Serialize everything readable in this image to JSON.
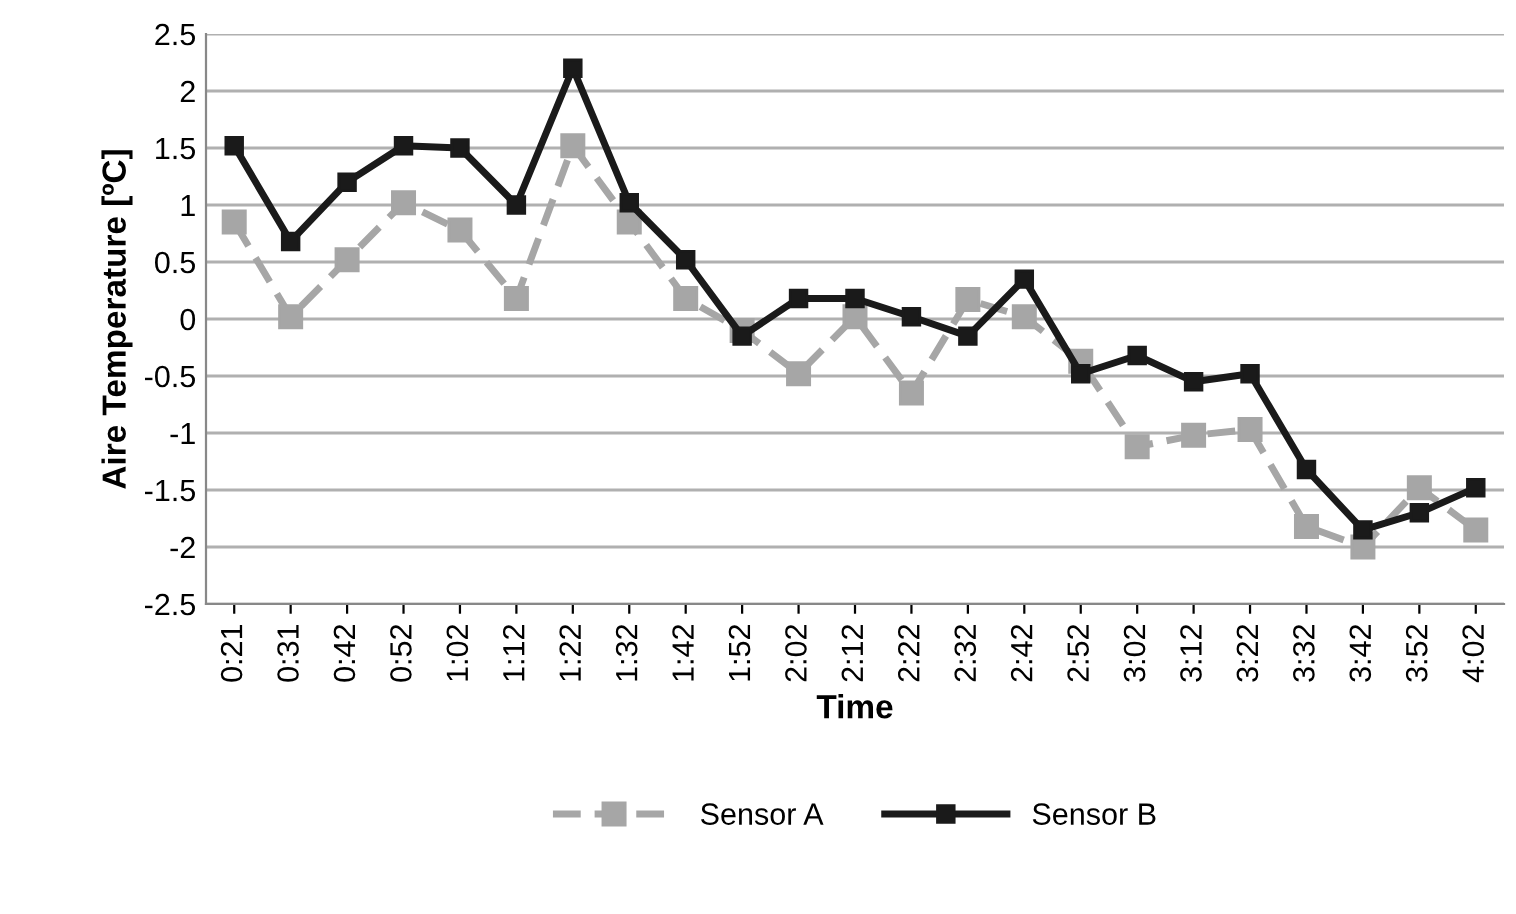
{
  "chart_data": {
    "type": "line",
    "xlabel": "Time",
    "ylabel": "Aire Temperature [ºC]",
    "categories": [
      "0:21",
      "0:31",
      "0:42",
      "0:52",
      "1:02",
      "1:12",
      "1:22",
      "1:32",
      "1:42",
      "1:52",
      "2:02",
      "2:12",
      "2:22",
      "2:32",
      "2:42",
      "2:52",
      "3:02",
      "3:12",
      "3:22",
      "3:32",
      "3:42",
      "3:52",
      "4:02"
    ],
    "series": [
      {
        "name": "Sensor A",
        "color": "#a6a6a6",
        "line_style": "dashed",
        "values": [
          0.85,
          0.02,
          0.52,
          1.02,
          0.78,
          0.18,
          1.52,
          0.85,
          0.18,
          -0.1,
          -0.48,
          0.02,
          -0.65,
          0.17,
          0.02,
          -0.37,
          -1.12,
          -1.02,
          -0.97,
          -1.82,
          -2.0,
          -1.48,
          -1.85
        ]
      },
      {
        "name": "Sensor B",
        "color": "#1a1a1a",
        "line_style": "solid",
        "values": [
          1.52,
          0.68,
          1.2,
          1.52,
          1.5,
          1.0,
          2.2,
          1.02,
          0.52,
          -0.15,
          0.18,
          0.18,
          0.02,
          -0.15,
          0.35,
          -0.48,
          -0.32,
          -0.55,
          -0.48,
          -1.32,
          -1.85,
          -1.7,
          -1.48
        ]
      }
    ],
    "ylim": [
      -2.5,
      2.5
    ],
    "yticks": [
      -2.5,
      -2,
      -1.5,
      -1,
      -0.5,
      0,
      0.5,
      1,
      1.5,
      2,
      2.5
    ],
    "grid": "y",
    "legend": "bottom",
    "marker": "square"
  }
}
